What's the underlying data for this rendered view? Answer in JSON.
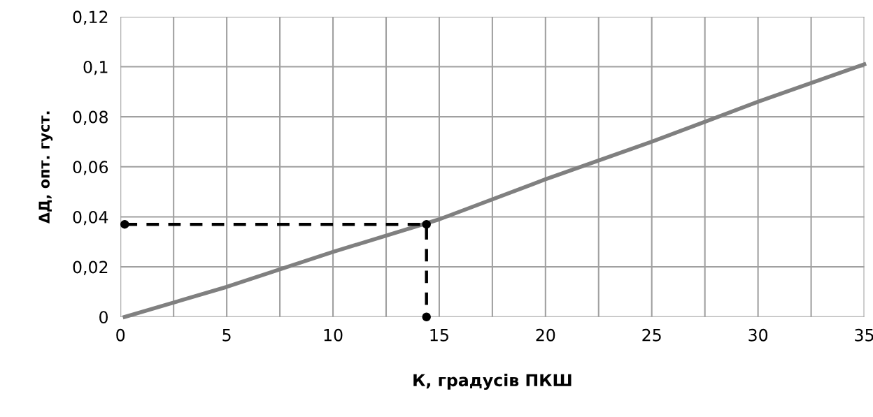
{
  "chart_data": {
    "type": "line",
    "xlabel": "К, градусів ПКШ",
    "ylabel": "ΔД, опт. густ.",
    "xlim": [
      0,
      35
    ],
    "ylim": [
      0,
      0.12
    ],
    "xticks": [
      0,
      {
        "value": 2.5,
        "label": null
      },
      5,
      {
        "value": 7.5,
        "label": null
      },
      10,
      {
        "value": 12.5,
        "label": null
      },
      15,
      {
        "value": 17.5,
        "label": null
      },
      20,
      {
        "value": 22.5,
        "label": null
      },
      25,
      {
        "value": 27.5,
        "label": null
      },
      30,
      {
        "value": 32.5,
        "label": null
      },
      35
    ],
    "yticks": [
      {
        "value": 0,
        "label": "0"
      },
      {
        "value": 0.02,
        "label": "0,02"
      },
      {
        "value": 0.04,
        "label": "0,04"
      },
      {
        "value": 0.06,
        "label": "0,06"
      },
      {
        "value": 0.08,
        "label": "0,08"
      },
      {
        "value": 0.1,
        "label": "0,1"
      },
      {
        "value": 0.12,
        "label": "0,12"
      }
    ],
    "grid": true,
    "series": [
      {
        "color": "#808080",
        "x": [
          0.2,
          5,
          10,
          15,
          20,
          25,
          30,
          35
        ],
        "values": [
          0,
          0.012,
          0.026,
          0.039,
          0.055,
          0.07,
          0.086,
          0.101
        ],
        "marker": "none",
        "line_style": "solid"
      },
      {
        "color": "#000000",
        "x": [
          0.2,
          14.4,
          14.4
        ],
        "values": [
          0.037,
          0.037,
          0
        ],
        "marker": "circle",
        "line_style": "dashed"
      }
    ]
  }
}
